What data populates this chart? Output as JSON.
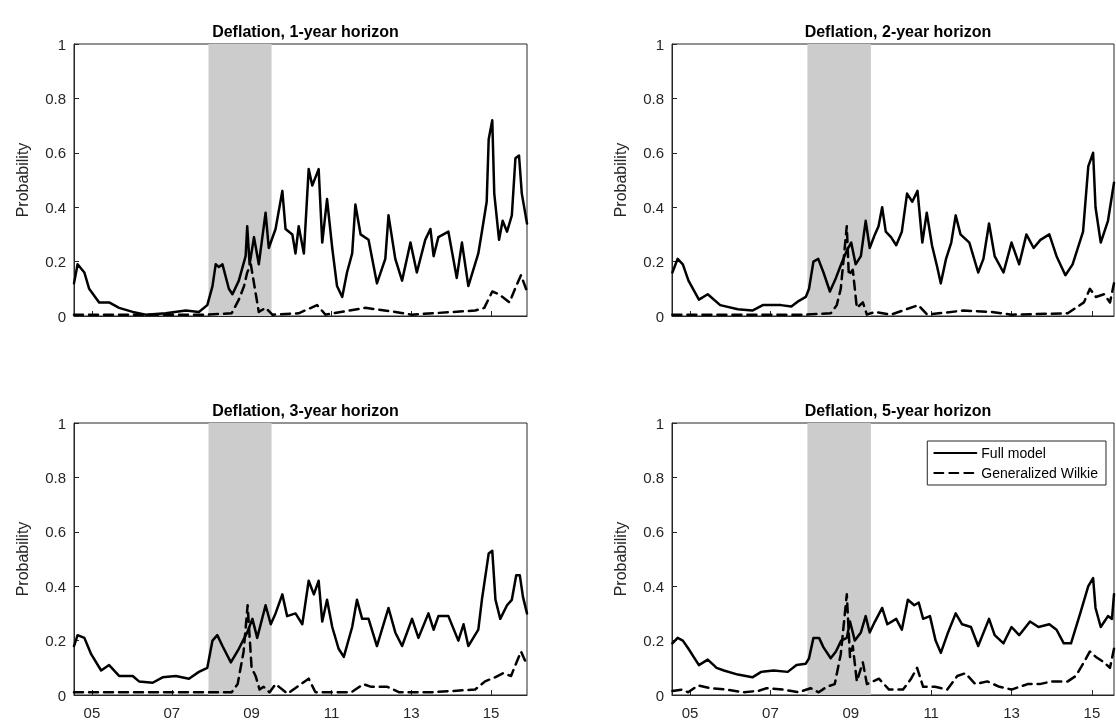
{
  "chart_data": [
    {
      "type": "line",
      "title": "Deflation, 1-year horizon",
      "ylabel": "Probability",
      "xlim": [
        2004.55,
        2015.9
      ],
      "xticks": [
        {
          "value": 2005,
          "label": null
        },
        {
          "value": 2007,
          "label": null
        },
        {
          "value": 2009,
          "label": null
        },
        {
          "value": 2011,
          "label": null
        },
        {
          "value": 2013,
          "label": null
        },
        {
          "value": 2015,
          "label": null
        }
      ],
      "ylim": [
        0,
        1
      ],
      "yticks": [
        0,
        0.2,
        0.4,
        0.6,
        0.8,
        1
      ],
      "tick_labels": "y",
      "grid": false,
      "legend": false,
      "bands": [
        {
          "axis": "x",
          "from": 2007.92,
          "to": 2009.5,
          "color": "#cccccc"
        }
      ],
      "series": [
        {
          "color": "#000000",
          "line_style": "solid",
          "x": [
            2004.55,
            2004.64,
            2004.81,
            2004.93,
            2005.18,
            2005.43,
            2005.68,
            2006.02,
            2006.35,
            2006.85,
            2007.35,
            2007.68,
            2007.89,
            2008.02,
            2008.1,
            2008.18,
            2008.27,
            2008.43,
            2008.52,
            2008.68,
            2008.85,
            2008.89,
            2008.95,
            2009.06,
            2009.18,
            2009.35,
            2009.43,
            2009.6,
            2009.77,
            2009.85,
            2010.02,
            2010.1,
            2010.18,
            2010.31,
            2010.43,
            2010.52,
            2010.68,
            2010.77,
            2010.89,
            2011.02,
            2011.14,
            2011.27,
            2011.39,
            2011.52,
            2011.6,
            2011.73,
            2011.93,
            2012.14,
            2012.35,
            2012.43,
            2012.6,
            2012.77,
            2012.98,
            2013.14,
            2013.35,
            2013.48,
            2013.56,
            2013.68,
            2013.93,
            2014.14,
            2014.27,
            2014.43,
            2014.68,
            2014.77,
            2014.89,
            2014.94,
            2015.03,
            2015.08,
            2015.2,
            2015.29,
            2015.4,
            2015.52,
            2015.61,
            2015.7,
            2015.77,
            2015.9
          ],
          "values": [
            0.12,
            0.19,
            0.16,
            0.1,
            0.05,
            0.05,
            0.03,
            0.015,
            0.005,
            0.01,
            0.02,
            0.015,
            0.04,
            0.11,
            0.19,
            0.18,
            0.19,
            0.1,
            0.08,
            0.13,
            0.22,
            0.33,
            0.19,
            0.29,
            0.19,
            0.38,
            0.25,
            0.32,
            0.46,
            0.32,
            0.3,
            0.23,
            0.33,
            0.23,
            0.54,
            0.48,
            0.54,
            0.27,
            0.43,
            0.25,
            0.11,
            0.07,
            0.16,
            0.23,
            0.41,
            0.3,
            0.28,
            0.12,
            0.21,
            0.37,
            0.21,
            0.13,
            0.27,
            0.16,
            0.28,
            0.32,
            0.22,
            0.29,
            0.31,
            0.14,
            0.27,
            0.11,
            0.23,
            0.31,
            0.42,
            0.65,
            0.72,
            0.45,
            0.28,
            0.35,
            0.31,
            0.37,
            0.58,
            0.59,
            0.45,
            0.34
          ]
        },
        {
          "color": "#000000",
          "line_style": "dashed",
          "x": [
            2004.55,
            2007.9,
            2008.5,
            2008.68,
            2008.81,
            2008.89,
            2008.98,
            2009.18,
            2009.35,
            2009.52,
            2010.18,
            2010.64,
            2010.85,
            2011.85,
            2012.6,
            2013.0,
            2014.6,
            2014.83,
            2015.03,
            2015.2,
            2015.46,
            2015.63,
            2015.75,
            2015.9
          ],
          "values": [
            0.005,
            0.005,
            0.01,
            0.06,
            0.11,
            0.16,
            0.19,
            0.015,
            0.03,
            0.005,
            0.01,
            0.04,
            0.005,
            0.03,
            0.015,
            0.005,
            0.02,
            0.03,
            0.09,
            0.08,
            0.05,
            0.11,
            0.15,
            0.09
          ]
        }
      ]
    },
    {
      "type": "line",
      "title": "Deflation, 2-year horizon",
      "ylabel": "Probability",
      "xlim": [
        2004.55,
        2015.55
      ],
      "xticks": [
        {
          "value": 2005,
          "label": null
        },
        {
          "value": 2007,
          "label": null
        },
        {
          "value": 2009,
          "label": null
        },
        {
          "value": 2011,
          "label": null
        },
        {
          "value": 2013,
          "label": null
        },
        {
          "value": 2015,
          "label": null
        }
      ],
      "ylim": [
        0,
        1
      ],
      "yticks": [
        0,
        0.2,
        0.4,
        0.6,
        0.8,
        1
      ],
      "tick_labels": "y",
      "grid": false,
      "legend": false,
      "bands": [
        {
          "axis": "x",
          "from": 2007.92,
          "to": 2009.5,
          "color": "#cccccc"
        }
      ],
      "series": [
        {
          "color": "#000000",
          "line_style": "solid",
          "x": [
            2004.56,
            2004.69,
            2004.82,
            2004.96,
            2005.22,
            2005.44,
            2005.75,
            2006.19,
            2006.55,
            2006.81,
            2007.26,
            2007.52,
            2007.7,
            2007.88,
            2007.96,
            2008.07,
            2008.19,
            2008.32,
            2008.48,
            2008.63,
            2008.76,
            2008.9,
            2009.01,
            2009.12,
            2009.25,
            2009.37,
            2009.47,
            2009.6,
            2009.69,
            2009.78,
            2009.87,
            2010.0,
            2010.13,
            2010.27,
            2010.4,
            2010.53,
            2010.66,
            2010.78,
            2010.89,
            2011.02,
            2011.15,
            2011.24,
            2011.37,
            2011.5,
            2011.61,
            2011.73,
            2011.95,
            2012.17,
            2012.3,
            2012.44,
            2012.58,
            2012.8,
            2013.0,
            2013.19,
            2013.37,
            2013.55,
            2013.72,
            2013.94,
            2014.12,
            2014.34,
            2014.52,
            2014.78,
            2014.91,
            2015.03,
            2015.09,
            2015.22,
            2015.4,
            2015.55
          ],
          "values": [
            0.16,
            0.21,
            0.19,
            0.13,
            0.06,
            0.08,
            0.04,
            0.025,
            0.02,
            0.04,
            0.04,
            0.035,
            0.055,
            0.07,
            0.1,
            0.2,
            0.21,
            0.16,
            0.09,
            0.14,
            0.19,
            0.24,
            0.27,
            0.19,
            0.22,
            0.35,
            0.25,
            0.3,
            0.33,
            0.4,
            0.31,
            0.29,
            0.26,
            0.31,
            0.45,
            0.42,
            0.46,
            0.27,
            0.38,
            0.26,
            0.18,
            0.12,
            0.21,
            0.27,
            0.37,
            0.3,
            0.27,
            0.16,
            0.21,
            0.34,
            0.22,
            0.16,
            0.27,
            0.19,
            0.3,
            0.25,
            0.28,
            0.3,
            0.22,
            0.15,
            0.19,
            0.31,
            0.55,
            0.6,
            0.4,
            0.27,
            0.35,
            0.49
          ]
        },
        {
          "color": "#000000",
          "line_style": "dashed",
          "x": [
            2004.56,
            2007.9,
            2008.5,
            2008.65,
            2008.75,
            2008.9,
            2008.95,
            2009.05,
            2009.15,
            2009.3,
            2009.4,
            2009.6,
            2010.0,
            2010.68,
            2010.9,
            2011.8,
            2012.5,
            2013.0,
            2014.4,
            2014.8,
            2014.95,
            2015.1,
            2015.3,
            2015.45,
            2015.55
          ],
          "values": [
            0.005,
            0.005,
            0.01,
            0.04,
            0.1,
            0.33,
            0.15,
            0.17,
            0.03,
            0.05,
            0.005,
            0.015,
            0.005,
            0.04,
            0.005,
            0.02,
            0.015,
            0.005,
            0.01,
            0.05,
            0.1,
            0.07,
            0.08,
            0.05,
            0.12
          ]
        }
      ]
    },
    {
      "type": "line",
      "title": "Deflation, 3-year horizon",
      "ylabel": "Probability",
      "xlim": [
        2004.55,
        2015.9
      ],
      "xticks": [
        {
          "value": 2005,
          "label": "05"
        },
        {
          "value": 2007,
          "label": "07"
        },
        {
          "value": 2009,
          "label": "09"
        },
        {
          "value": 2011,
          "label": "11"
        },
        {
          "value": 2013,
          "label": "13"
        },
        {
          "value": 2015,
          "label": "15"
        }
      ],
      "ylim": [
        0,
        1
      ],
      "yticks": [
        0,
        0.2,
        0.4,
        0.6,
        0.8,
        1
      ],
      "grid": false,
      "legend": false,
      "bands": [
        {
          "axis": "x",
          "from": 2007.92,
          "to": 2009.5,
          "color": "#cccccc"
        }
      ],
      "series": [
        {
          "color": "#000000",
          "line_style": "solid",
          "x": [
            2004.55,
            2004.64,
            2004.81,
            2004.98,
            2005.23,
            2005.43,
            2005.68,
            2006.02,
            2006.18,
            2006.52,
            2006.77,
            2007.1,
            2007.43,
            2007.68,
            2007.89,
            2008.02,
            2008.14,
            2008.27,
            2008.48,
            2008.68,
            2008.89,
            2009.02,
            2009.14,
            2009.35,
            2009.48,
            2009.6,
            2009.77,
            2009.89,
            2010.1,
            2010.27,
            2010.43,
            2010.56,
            2010.68,
            2010.77,
            2010.89,
            2011.02,
            2011.18,
            2011.31,
            2011.52,
            2011.64,
            2011.77,
            2011.93,
            2012.14,
            2012.43,
            2012.6,
            2012.77,
            2013.02,
            2013.18,
            2013.43,
            2013.56,
            2013.68,
            2013.93,
            2014.18,
            2014.31,
            2014.43,
            2014.68,
            2014.77,
            2014.94,
            2015.03,
            2015.11,
            2015.23,
            2015.4,
            2015.52,
            2015.63,
            2015.72,
            2015.8,
            2015.9
          ],
          "values": [
            0.18,
            0.22,
            0.21,
            0.15,
            0.09,
            0.11,
            0.07,
            0.07,
            0.05,
            0.045,
            0.065,
            0.07,
            0.06,
            0.085,
            0.1,
            0.2,
            0.22,
            0.18,
            0.12,
            0.17,
            0.23,
            0.28,
            0.21,
            0.33,
            0.26,
            0.3,
            0.37,
            0.29,
            0.3,
            0.26,
            0.42,
            0.37,
            0.42,
            0.27,
            0.35,
            0.25,
            0.17,
            0.14,
            0.25,
            0.35,
            0.28,
            0.28,
            0.18,
            0.32,
            0.23,
            0.18,
            0.28,
            0.21,
            0.3,
            0.24,
            0.29,
            0.29,
            0.2,
            0.26,
            0.18,
            0.24,
            0.35,
            0.52,
            0.53,
            0.35,
            0.28,
            0.33,
            0.35,
            0.44,
            0.44,
            0.36,
            0.3
          ]
        },
        {
          "color": "#000000",
          "line_style": "dashed",
          "x": [
            2004.55,
            2007.9,
            2008.5,
            2008.65,
            2008.8,
            2008.9,
            2009.0,
            2009.1,
            2009.2,
            2009.3,
            2009.45,
            2009.6,
            2009.9,
            2010.43,
            2010.6,
            2011.5,
            2011.8,
            2012.0,
            2012.4,
            2012.7,
            2013.5,
            2014.6,
            2014.85,
            2015.1,
            2015.3,
            2015.5,
            2015.75,
            2015.9
          ],
          "values": [
            0.01,
            0.01,
            0.01,
            0.04,
            0.16,
            0.33,
            0.1,
            0.07,
            0.02,
            0.03,
            0.01,
            0.04,
            0.005,
            0.06,
            0.01,
            0.01,
            0.04,
            0.03,
            0.03,
            0.01,
            0.01,
            0.02,
            0.05,
            0.065,
            0.08,
            0.07,
            0.16,
            0.11
          ]
        }
      ]
    },
    {
      "type": "line",
      "title": "Deflation, 5-year horizon",
      "ylabel": "Probability",
      "xlim": [
        2004.55,
        2015.55
      ],
      "xticks": [
        {
          "value": 2005,
          "label": "05"
        },
        {
          "value": 2007,
          "label": "07"
        },
        {
          "value": 2009,
          "label": "09"
        },
        {
          "value": 2011,
          "label": "11"
        },
        {
          "value": 2013,
          "label": "13"
        },
        {
          "value": 2015,
          "label": "15"
        }
      ],
      "ylim": [
        0,
        1
      ],
      "yticks": [
        0,
        0.2,
        0.4,
        0.6,
        0.8,
        1
      ],
      "grid": false,
      "legend": "top right",
      "bands": [
        {
          "axis": "x",
          "from": 2007.92,
          "to": 2009.5,
          "color": "#cccccc"
        }
      ],
      "series": [
        {
          "name": "Full model",
          "color": "#000000",
          "line_style": "solid",
          "x": [
            2004.56,
            2004.69,
            2004.82,
            2004.96,
            2005.22,
            2005.44,
            2005.66,
            2005.84,
            2006.19,
            2006.55,
            2006.77,
            2007.08,
            2007.43,
            2007.65,
            2007.88,
            2007.96,
            2008.07,
            2008.21,
            2008.32,
            2008.5,
            2008.63,
            2008.76,
            2008.9,
            2008.98,
            2009.1,
            2009.25,
            2009.37,
            2009.47,
            2009.6,
            2009.78,
            2009.91,
            2010.13,
            2010.27,
            2010.42,
            2010.58,
            2010.69,
            2010.8,
            2010.97,
            2011.11,
            2011.24,
            2011.42,
            2011.61,
            2011.77,
            2011.99,
            2012.17,
            2012.44,
            2012.58,
            2012.8,
            2013.0,
            2013.19,
            2013.46,
            2013.67,
            2013.94,
            2014.12,
            2014.3,
            2014.48,
            2014.73,
            2014.91,
            2015.03,
            2015.09,
            2015.22,
            2015.4,
            2015.5,
            2015.55
          ],
          "values": [
            0.19,
            0.21,
            0.2,
            0.17,
            0.11,
            0.13,
            0.1,
            0.09,
            0.075,
            0.065,
            0.085,
            0.09,
            0.085,
            0.11,
            0.115,
            0.135,
            0.21,
            0.21,
            0.175,
            0.135,
            0.16,
            0.2,
            0.21,
            0.27,
            0.2,
            0.23,
            0.29,
            0.23,
            0.27,
            0.32,
            0.26,
            0.28,
            0.24,
            0.35,
            0.33,
            0.34,
            0.28,
            0.29,
            0.2,
            0.155,
            0.23,
            0.3,
            0.26,
            0.25,
            0.18,
            0.28,
            0.22,
            0.19,
            0.25,
            0.22,
            0.27,
            0.25,
            0.26,
            0.24,
            0.19,
            0.19,
            0.31,
            0.4,
            0.43,
            0.32,
            0.25,
            0.29,
            0.28,
            0.37
          ]
        },
        {
          "name": "Generalized Wilkie",
          "color": "#000000",
          "line_style": "dashed",
          "x": [
            2004.56,
            2004.8,
            2004.95,
            2005.2,
            2005.5,
            2005.9,
            2006.3,
            2006.7,
            2006.9,
            2007.3,
            2007.7,
            2008.0,
            2008.2,
            2008.4,
            2008.6,
            2008.75,
            2008.9,
            2008.98,
            2009.05,
            2009.15,
            2009.3,
            2009.4,
            2009.7,
            2009.95,
            2010.3,
            2010.5,
            2010.65,
            2010.8,
            2011.1,
            2011.4,
            2011.65,
            2011.85,
            2012.1,
            2012.4,
            2012.7,
            2013.0,
            2013.4,
            2013.7,
            2014.0,
            2014.4,
            2014.6,
            2014.8,
            2014.95,
            2015.1,
            2015.3,
            2015.45,
            2015.55
          ],
          "values": [
            0.015,
            0.02,
            0.01,
            0.035,
            0.025,
            0.02,
            0.01,
            0.015,
            0.025,
            0.02,
            0.01,
            0.025,
            0.01,
            0.03,
            0.04,
            0.15,
            0.37,
            0.14,
            0.18,
            0.05,
            0.12,
            0.04,
            0.06,
            0.02,
            0.02,
            0.06,
            0.1,
            0.03,
            0.03,
            0.02,
            0.07,
            0.08,
            0.04,
            0.05,
            0.03,
            0.02,
            0.04,
            0.04,
            0.05,
            0.05,
            0.07,
            0.12,
            0.16,
            0.14,
            0.12,
            0.1,
            0.17
          ]
        }
      ]
    }
  ]
}
